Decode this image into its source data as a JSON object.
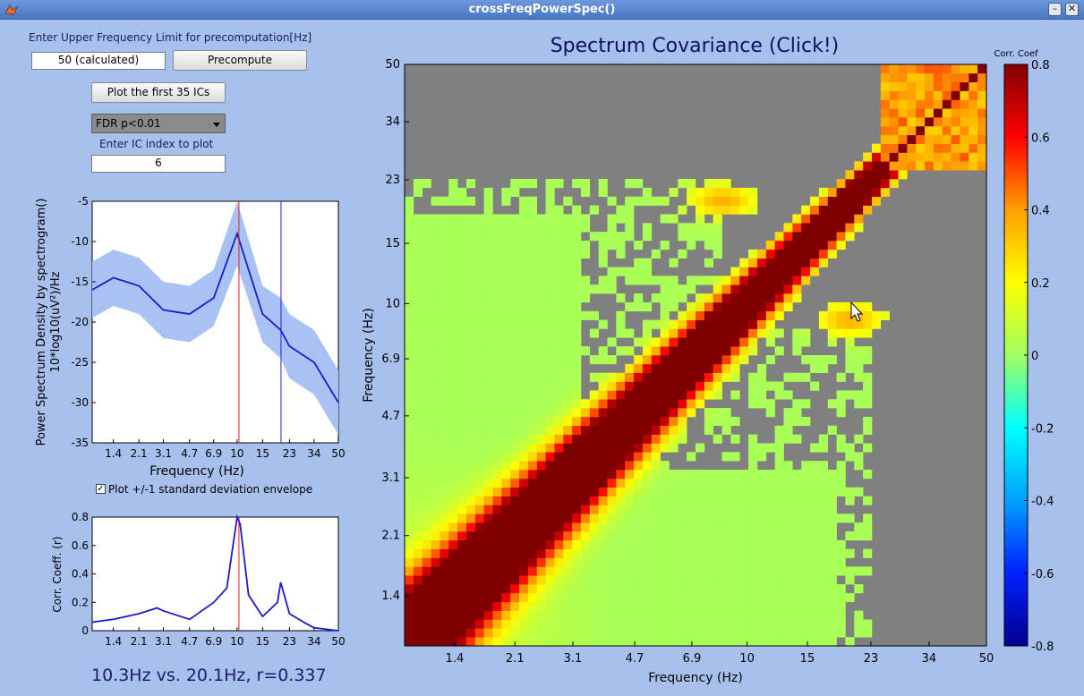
{
  "window": {
    "title": "crossFreqPowerSpec()"
  },
  "controls": {
    "upper_freq_label": "Enter Upper Frequency Limit for precomputation[Hz]",
    "upper_freq_value": "50 (calculated)",
    "precompute_label": "Precompute",
    "plot_first_label": "Plot the first 35 ICs",
    "threshold_selected": "FDR p<0.01",
    "ic_index_label": "Enter IC index to plot",
    "ic_index_value": "6",
    "envelope_label": "Plot +/-1 standard deviation envelope",
    "envelope_checked": true
  },
  "status_text": "10.3Hz vs. 20.1Hz, r=0.337",
  "psd_plot": {
    "ylabel_line1": "Power Spectrum Density by spectrogram()",
    "ylabel_line2": "10*log10(uV²)/Hz",
    "xlabel": "Frequency (Hz)",
    "yticks": [
      "-5",
      "-10",
      "-15",
      "-20",
      "-25",
      "-30",
      "-35"
    ],
    "xticks": [
      "1.4",
      "2.1",
      "3.1",
      "4.7",
      "6.9",
      "10",
      "15",
      "23",
      "34",
      "50"
    ]
  },
  "corr_plot": {
    "ylabel": "Corr. Coeff. (r)",
    "yticks": [
      "0.8",
      "0.6",
      "0.4",
      "0.2",
      "0"
    ],
    "xticks": [
      "1.4",
      "2.1",
      "3.1",
      "4.7",
      "6.9",
      "10",
      "15",
      "23",
      "34",
      "50"
    ]
  },
  "heatmap": {
    "title": "Spectrum Covariance (Click!)",
    "xlabel": "Frequency (Hz)",
    "ylabel": "Frequency (Hz)",
    "ticks": [
      "1.4",
      "2.1",
      "3.1",
      "4.7",
      "6.9",
      "10",
      "15",
      "23",
      "34",
      "50"
    ],
    "colorbar_title": "Corr. Coef",
    "colorbar_ticks": [
      "0.8",
      "0.6",
      "0.4",
      "0.2",
      "0",
      "-0.2",
      "-0.4",
      "-0.6",
      "-0.8"
    ]
  },
  "chart_data": [
    {
      "type": "line",
      "x": [
        1,
        1.4,
        2.1,
        3.1,
        4.7,
        6.9,
        10,
        15,
        20,
        23,
        34,
        50
      ],
      "series": [
        {
          "values": [
            -16,
            -14.5,
            -15.5,
            -18.5,
            -19,
            -17,
            -9,
            -19,
            -21,
            -23,
            -25,
            -30
          ]
        },
        {
          "values": [
            -12.5,
            -11,
            -12,
            -15,
            -15.5,
            -13.5,
            -5,
            -15.5,
            -17,
            -19,
            -21,
            -26
          ]
        },
        {
          "values": [
            -19.5,
            -18,
            -19,
            -22,
            -22.5,
            -20.5,
            -13,
            -22.5,
            -24.5,
            -27,
            -29,
            -34
          ]
        }
      ],
      "markers_x": [
        10.3,
        20.1
      ],
      "ylim": [
        -35,
        -5
      ],
      "xlabel": "Frequency (Hz)",
      "ylabel": "Power Spectrum Density by spectrogram()"
    },
    {
      "type": "line",
      "x": [
        1,
        1.4,
        2.1,
        2.8,
        3.1,
        4.7,
        6.9,
        8.5,
        10,
        10.5,
        12,
        15,
        19,
        20,
        23,
        30,
        34,
        50
      ],
      "series": [
        {
          "values": [
            0.06,
            0.08,
            0.12,
            0.16,
            0.14,
            0.08,
            0.2,
            0.3,
            0.85,
            0.75,
            0.25,
            0.1,
            0.2,
            0.34,
            0.12,
            0.05,
            0.02,
            0.0
          ]
        }
      ],
      "markers_x": [
        10.3
      ],
      "ylim": [
        0,
        0.8
      ],
      "ylabel": "Corr. Coeff. (r)"
    },
    {
      "type": "heatmap",
      "title": "Spectrum Covariance (Click!)",
      "xlabel": "Frequency (Hz)",
      "ylabel": "Frequency (Hz)",
      "xlim": [
        1,
        50
      ],
      "ylim": [
        1,
        50
      ],
      "color_range": [
        -0.8,
        0.8
      ],
      "features": [
        {
          "x": 8.5,
          "y": 20,
          "r": 0.35
        },
        {
          "x": 20,
          "y": 9,
          "r": 0.35
        }
      ]
    }
  ]
}
